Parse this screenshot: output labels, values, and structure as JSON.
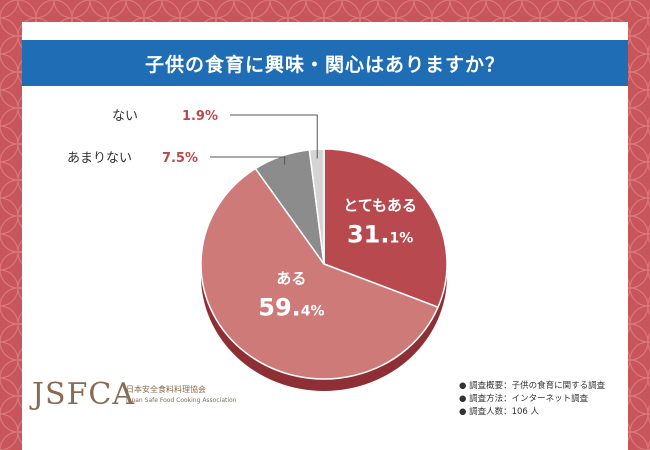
{
  "title": "子供の食育に興味・関心はありますか？",
  "chart_data": {
    "type": "pie",
    "title": "子供の食育に興味・関心はありますか？",
    "slices": [
      {
        "label": "とてもある",
        "num": "31.",
        "unit": "1%",
        "value": 31.1,
        "color": "#b84a4f"
      },
      {
        "label": "ある",
        "num": "59.",
        "unit": "4%",
        "value": 59.4,
        "color": "#cd7a79"
      },
      {
        "label": "あまりない",
        "num": "7.5%",
        "unit": "",
        "value": 7.5,
        "color": "#8c8c8c"
      },
      {
        "label": "ない",
        "num": "1.9%",
        "unit": "",
        "value": 1.9,
        "color": "#d4d4d4"
      }
    ]
  },
  "logo": {
    "main": "JSFCA",
    "jp": "日本安全食料料理協会",
    "en": "Japan Safe Food Cooking Association"
  },
  "notes": [
    "● 調査概要：子供の食育に関する調査",
    "● 調査方法：インターネット調査",
    "● 調査人数：106 人"
  ]
}
